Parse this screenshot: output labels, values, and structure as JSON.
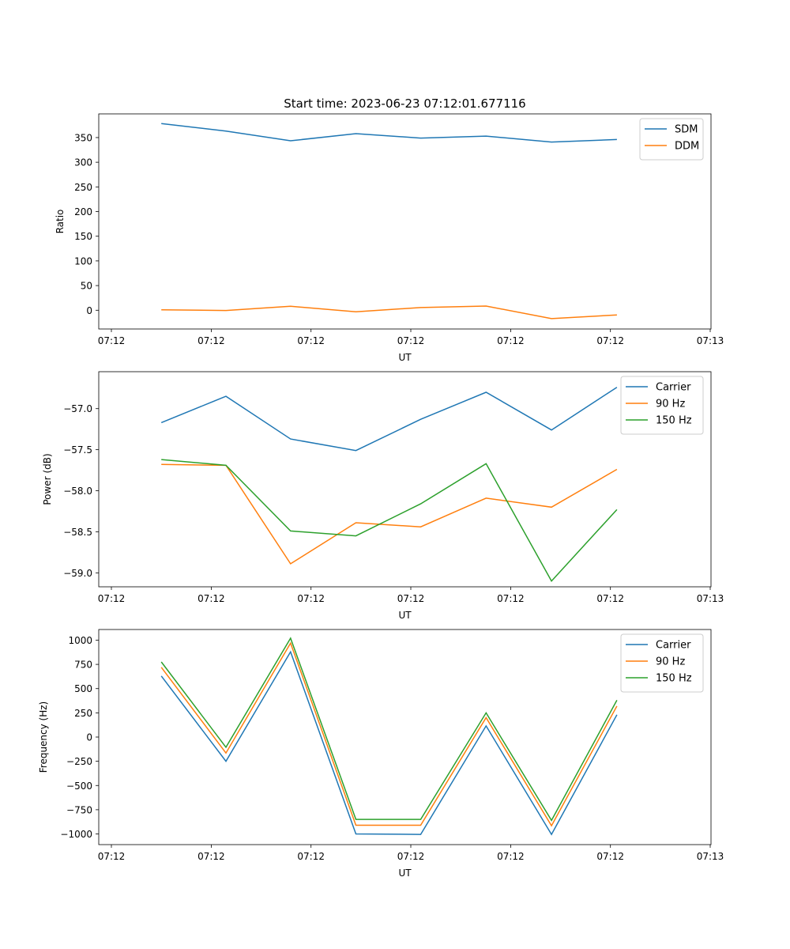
{
  "title": "Start time: 2023-06-23 07:12:01.677116",
  "colors": {
    "blue": "#1f77b4",
    "orange": "#ff7f0e",
    "green": "#2ca02c"
  },
  "chart_data": [
    {
      "type": "line",
      "title": "Start time: 2023-06-23 07:12:01.677116",
      "xlabel": "UT",
      "ylabel": "Ratio",
      "x_tick_labels": [
        "07:12",
        "07:12",
        "07:12",
        "07:12",
        "07:12",
        "07:12",
        "07:13"
      ],
      "y_ticks": [
        0,
        50,
        100,
        150,
        200,
        250,
        300,
        350
      ],
      "ylim": [
        -38,
        398
      ],
      "legend_position": "top-right",
      "series": [
        {
          "name": "SDM",
          "color": "#1f77b4",
          "values": [
            378.5,
            363.0,
            343.5,
            358.0,
            349.0,
            353.0,
            341.0,
            346.0
          ]
        },
        {
          "name": "DDM",
          "color": "#ff7f0e",
          "values": [
            1.0,
            -0.5,
            8.0,
            -3.0,
            5.5,
            8.5,
            -17.0,
            -9.5
          ]
        }
      ]
    },
    {
      "type": "line",
      "xlabel": "UT",
      "ylabel": "Power (dB)",
      "x_tick_labels": [
        "07:12",
        "07:12",
        "07:12",
        "07:12",
        "07:12",
        "07:12",
        "07:13"
      ],
      "y_ticks": [
        -59.0,
        -58.5,
        -58.0,
        -57.5,
        -57.0
      ],
      "y_tick_labels": [
        "−59.0",
        "−58.5",
        "−58.0",
        "−57.5",
        "−57.0"
      ],
      "ylim": [
        -59.17,
        -56.55
      ],
      "legend_position": "top-right",
      "series": [
        {
          "name": "Carrier",
          "color": "#1f77b4",
          "values": [
            -57.17,
            -56.85,
            -57.37,
            -57.51,
            -57.13,
            -56.8,
            -57.26,
            -56.74
          ]
        },
        {
          "name": "90 Hz",
          "color": "#ff7f0e",
          "values": [
            -57.68,
            -57.69,
            -58.89,
            -58.39,
            -58.44,
            -58.09,
            -58.2,
            -57.74
          ]
        },
        {
          "name": "150 Hz",
          "color": "#2ca02c",
          "values": [
            -57.62,
            -57.69,
            -58.49,
            -58.55,
            -58.16,
            -57.67,
            -59.1,
            -58.23
          ]
        }
      ]
    },
    {
      "type": "line",
      "xlabel": "UT",
      "ylabel": "Frequency (Hz)",
      "x_tick_labels": [
        "07:12",
        "07:12",
        "07:12",
        "07:12",
        "07:12",
        "07:12",
        "07:13"
      ],
      "y_ticks": [
        -1000,
        -750,
        -500,
        -250,
        0,
        250,
        500,
        750,
        1000
      ],
      "y_tick_labels": [
        "−1000",
        "−750",
        "−500",
        "−250",
        "0",
        "250",
        "500",
        "750",
        "1000"
      ],
      "ylim": [
        -1110,
        1110
      ],
      "legend_position": "top-right",
      "series": [
        {
          "name": "Carrier",
          "color": "#1f77b4",
          "values": [
            630,
            -250,
            880,
            -1000,
            -1005,
            115,
            -1005,
            230
          ]
        },
        {
          "name": "90 Hz",
          "color": "#ff7f0e",
          "values": [
            720,
            -165,
            970,
            -910,
            -910,
            200,
            -915,
            320
          ]
        },
        {
          "name": "150 Hz",
          "color": "#2ca02c",
          "values": [
            775,
            -105,
            1020,
            -850,
            -850,
            250,
            -860,
            380
          ]
        }
      ]
    }
  ]
}
